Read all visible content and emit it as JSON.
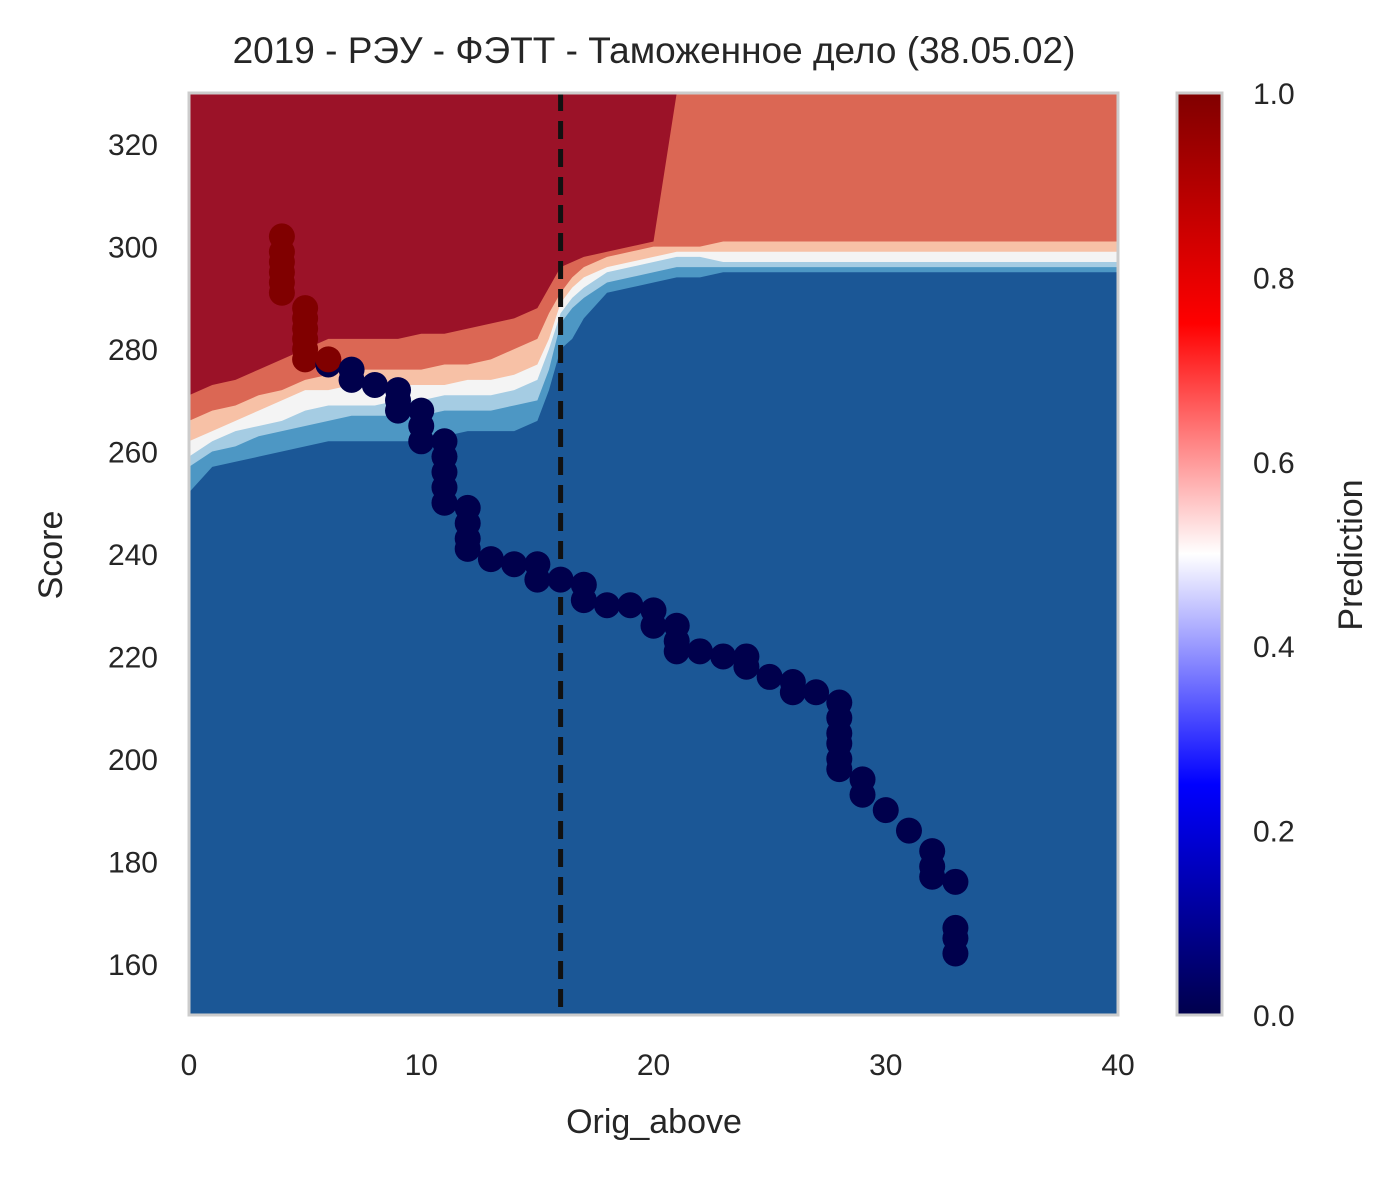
{
  "chart_data": {
    "type": "scatter",
    "title": "2019 - РЭУ - ФЭТТ - Таможенное дело (38.05.02)",
    "xlabel": "Orig_above",
    "ylabel": "Score",
    "xlim": [
      0,
      40
    ],
    "ylim": [
      150,
      330
    ],
    "xticks": [
      "0",
      "10",
      "20",
      "30",
      "40"
    ],
    "yticks": [
      "160",
      "180",
      "200",
      "220",
      "240",
      "260",
      "280",
      "300",
      "320"
    ],
    "grid": false,
    "vline": {
      "x": 16,
      "style": "dashed",
      "color": "#111111"
    },
    "colorbar": {
      "label": "Prediction",
      "range": [
        0,
        1
      ],
      "ticks": [
        "0.0",
        "0.2",
        "0.4",
        "0.6",
        "0.8",
        "1.0"
      ],
      "colormap": "seismic"
    },
    "background_contour": {
      "description_levels": [
        "#1b5796",
        "#4d97c4",
        "#a5cce3",
        "#f4f4f4",
        "#f7c1a6",
        "#db6754",
        "#9b1228"
      ],
      "boundary_scores_by_x": {
        "x": [
          0,
          1,
          2,
          3,
          4,
          5,
          6,
          7,
          8,
          9,
          10,
          11,
          12,
          13,
          14,
          15,
          15.5,
          16,
          16.5,
          17,
          18,
          19,
          20,
          21,
          22,
          23,
          24,
          25,
          30,
          35,
          40
        ],
        "b1": [
          252,
          257,
          258,
          259,
          260,
          261,
          262,
          262,
          262,
          262,
          262,
          263,
          264,
          264,
          264,
          266,
          272,
          280,
          282,
          286,
          291,
          292,
          293,
          294,
          294,
          295,
          295,
          295,
          295,
          295,
          295
        ],
        "b2": [
          257,
          260,
          261,
          263,
          264,
          265,
          266,
          267,
          267,
          267,
          267,
          268,
          268,
          268,
          269,
          270,
          276,
          285,
          288,
          290,
          293,
          294,
          295,
          296,
          296,
          296,
          296,
          296,
          296,
          296,
          296
        ],
        "b3": [
          259,
          262,
          264,
          265,
          266,
          268,
          269,
          269,
          269,
          270,
          270,
          271,
          271,
          271,
          272,
          274,
          280,
          287,
          290,
          292,
          295,
          296,
          297,
          298,
          298,
          297,
          297,
          297,
          297,
          297,
          297
        ],
        "b4": [
          262,
          264,
          266,
          268,
          270,
          272,
          272,
          273,
          273,
          273,
          273,
          273,
          274,
          274,
          275,
          277,
          282,
          289,
          292,
          294,
          296,
          297,
          298,
          299,
          299,
          299,
          299,
          299,
          299,
          299,
          299
        ],
        "b5": [
          266,
          268,
          269,
          271,
          272,
          274,
          275,
          276,
          276,
          276,
          276,
          277,
          277,
          278,
          280,
          282,
          287,
          291,
          294,
          296,
          298,
          299,
          300,
          300,
          300,
          301,
          301,
          301,
          301,
          301,
          301
        ],
        "b6": [
          271,
          273,
          274,
          276,
          278,
          280,
          282,
          282,
          282,
          282,
          283,
          283,
          284,
          285,
          286,
          288,
          292,
          296,
          297,
          298,
          299,
          300,
          301,
          330,
          330,
          330,
          330,
          330,
          330,
          330,
          330
        ]
      }
    },
    "series": [
      {
        "color_by_prediction": true,
        "points": [
          {
            "x": 4,
            "y": 302,
            "p": 1.0
          },
          {
            "x": 4,
            "y": 299,
            "p": 1.0
          },
          {
            "x": 4,
            "y": 297,
            "p": 1.0
          },
          {
            "x": 4,
            "y": 295,
            "p": 1.0
          },
          {
            "x": 4,
            "y": 293,
            "p": 1.0
          },
          {
            "x": 4,
            "y": 291,
            "p": 1.0
          },
          {
            "x": 5,
            "y": 288,
            "p": 1.0
          },
          {
            "x": 5,
            "y": 286,
            "p": 1.0
          },
          {
            "x": 5,
            "y": 284,
            "p": 1.0
          },
          {
            "x": 5,
            "y": 282,
            "p": 1.0
          },
          {
            "x": 5,
            "y": 280,
            "p": 1.0
          },
          {
            "x": 5,
            "y": 278,
            "p": 1.0
          },
          {
            "x": 6,
            "y": 277,
            "p": 0.0
          },
          {
            "x": 6,
            "y": 278,
            "p": 1.0
          },
          {
            "x": 7,
            "y": 276,
            "p": 0.0
          },
          {
            "x": 7,
            "y": 274,
            "p": 0.0
          },
          {
            "x": 8,
            "y": 273,
            "p": 0.0
          },
          {
            "x": 9,
            "y": 272,
            "p": 0.0
          },
          {
            "x": 9,
            "y": 270,
            "p": 0.0
          },
          {
            "x": 9,
            "y": 268,
            "p": 0.0
          },
          {
            "x": 10,
            "y": 268,
            "p": 0.0
          },
          {
            "x": 10,
            "y": 265,
            "p": 0.0
          },
          {
            "x": 10,
            "y": 262,
            "p": 0.0
          },
          {
            "x": 11,
            "y": 262,
            "p": 0.0
          },
          {
            "x": 11,
            "y": 259,
            "p": 0.0
          },
          {
            "x": 11,
            "y": 256,
            "p": 0.0
          },
          {
            "x": 11,
            "y": 253,
            "p": 0.0
          },
          {
            "x": 11,
            "y": 250,
            "p": 0.0
          },
          {
            "x": 12,
            "y": 249,
            "p": 0.0
          },
          {
            "x": 12,
            "y": 246,
            "p": 0.0
          },
          {
            "x": 12,
            "y": 243,
            "p": 0.0
          },
          {
            "x": 12,
            "y": 241,
            "p": 0.0
          },
          {
            "x": 13,
            "y": 239,
            "p": 0.0
          },
          {
            "x": 14,
            "y": 238,
            "p": 0.0
          },
          {
            "x": 15,
            "y": 238,
            "p": 0.0
          },
          {
            "x": 15,
            "y": 235,
            "p": 0.0
          },
          {
            "x": 16,
            "y": 235,
            "p": 0.0
          },
          {
            "x": 17,
            "y": 234,
            "p": 0.0
          },
          {
            "x": 17,
            "y": 231,
            "p": 0.0
          },
          {
            "x": 18,
            "y": 230,
            "p": 0.0
          },
          {
            "x": 19,
            "y": 230,
            "p": 0.0
          },
          {
            "x": 20,
            "y": 229,
            "p": 0.0
          },
          {
            "x": 20,
            "y": 226,
            "p": 0.0
          },
          {
            "x": 21,
            "y": 226,
            "p": 0.0
          },
          {
            "x": 21,
            "y": 223,
            "p": 0.0
          },
          {
            "x": 21,
            "y": 221,
            "p": 0.0
          },
          {
            "x": 22,
            "y": 221,
            "p": 0.0
          },
          {
            "x": 23,
            "y": 220,
            "p": 0.0
          },
          {
            "x": 24,
            "y": 220,
            "p": 0.0
          },
          {
            "x": 24,
            "y": 218,
            "p": 0.0
          },
          {
            "x": 25,
            "y": 216,
            "p": 0.0
          },
          {
            "x": 26,
            "y": 215,
            "p": 0.0
          },
          {
            "x": 26,
            "y": 213,
            "p": 0.0
          },
          {
            "x": 27,
            "y": 213,
            "p": 0.0
          },
          {
            "x": 28,
            "y": 211,
            "p": 0.0
          },
          {
            "x": 28,
            "y": 208,
            "p": 0.0
          },
          {
            "x": 28,
            "y": 205,
            "p": 0.0
          },
          {
            "x": 28,
            "y": 203,
            "p": 0.0
          },
          {
            "x": 28,
            "y": 200,
            "p": 0.0
          },
          {
            "x": 28,
            "y": 198,
            "p": 0.0
          },
          {
            "x": 29,
            "y": 196,
            "p": 0.0
          },
          {
            "x": 29,
            "y": 193,
            "p": 0.0
          },
          {
            "x": 30,
            "y": 190,
            "p": 0.0
          },
          {
            "x": 31,
            "y": 186,
            "p": 0.0
          },
          {
            "x": 32,
            "y": 182,
            "p": 0.0
          },
          {
            "x": 32,
            "y": 179,
            "p": 0.0
          },
          {
            "x": 32,
            "y": 177,
            "p": 0.0
          },
          {
            "x": 33,
            "y": 176,
            "p": 0.0
          },
          {
            "x": 33,
            "y": 167,
            "p": 0.0
          },
          {
            "x": 33,
            "y": 165,
            "p": 0.0
          },
          {
            "x": 33,
            "y": 162,
            "p": 0.0
          }
        ]
      }
    ]
  }
}
